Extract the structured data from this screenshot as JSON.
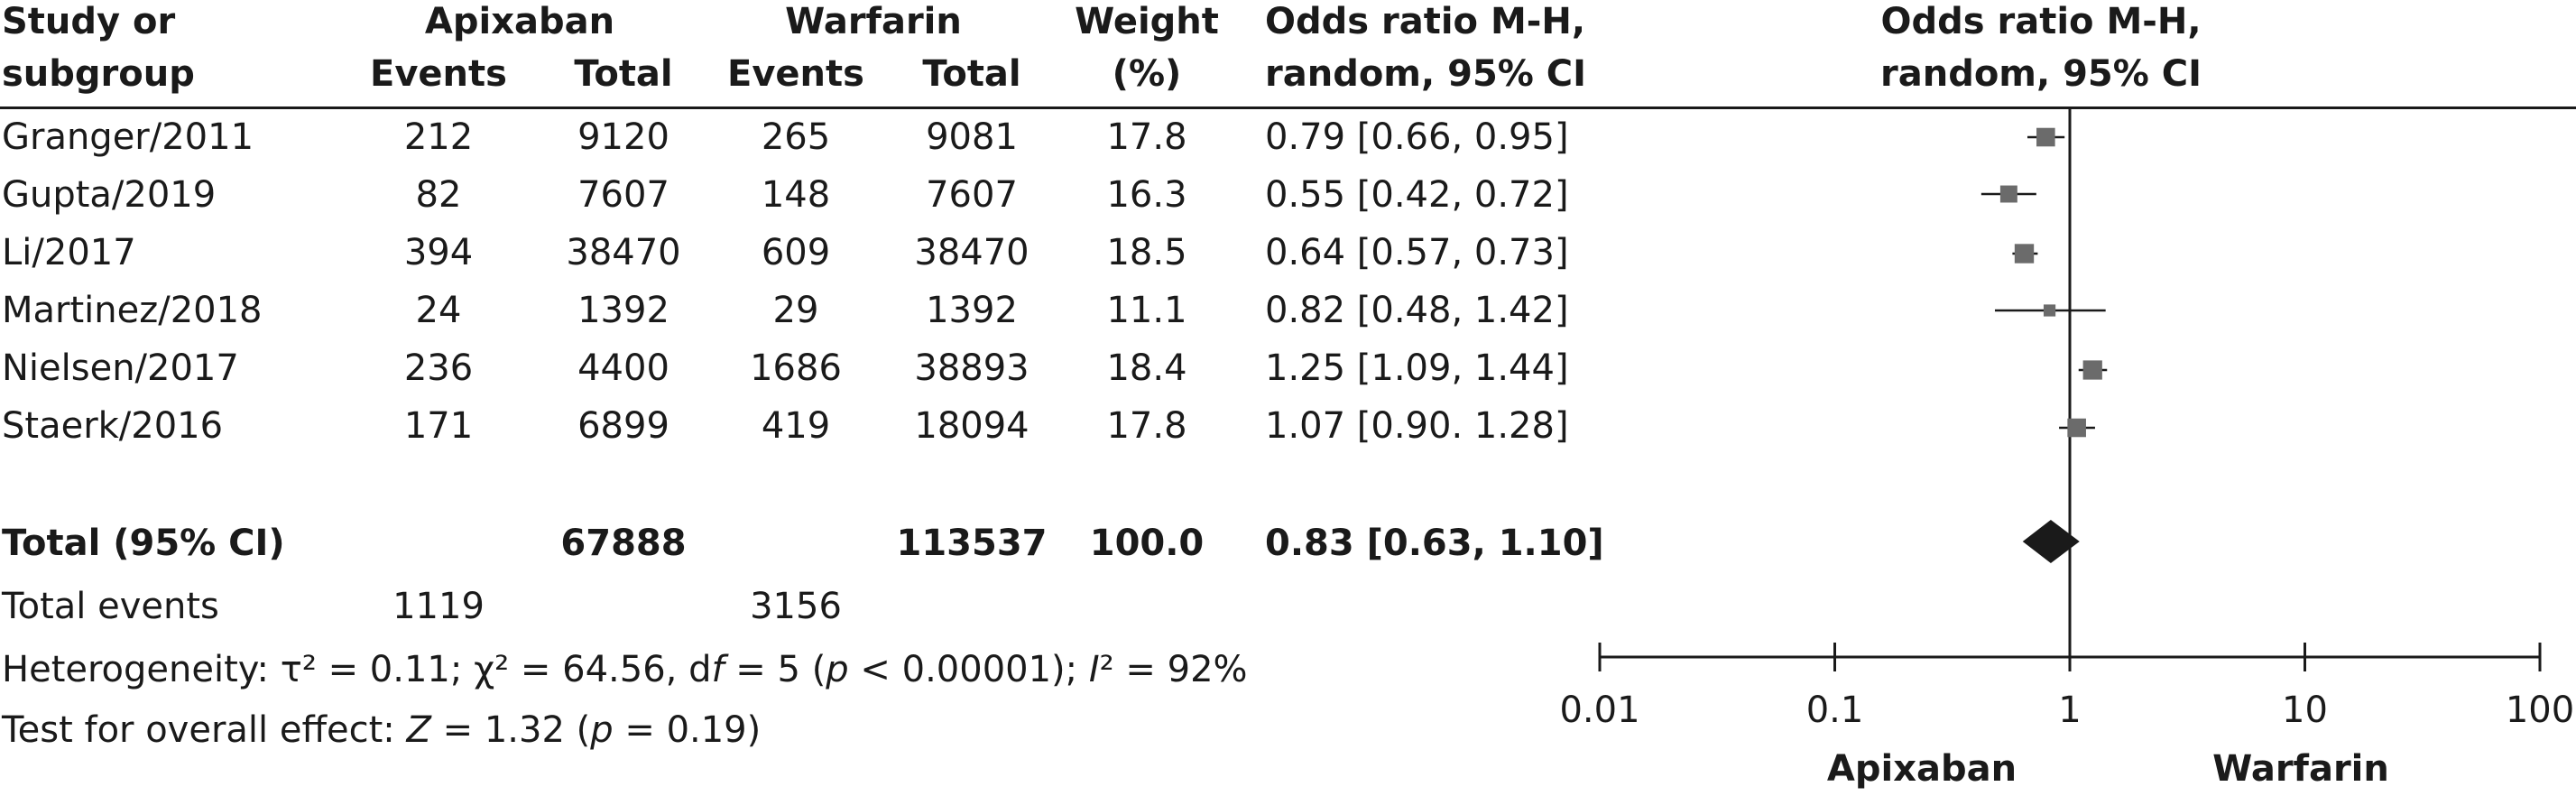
{
  "headers": {
    "study_1": "Study or",
    "study_2": "subgroup",
    "apix": "Apixaban",
    "warf": "Warfarin",
    "events": "Events",
    "total": "Total",
    "weight_1": "Weight",
    "weight_2": "(%)",
    "or_1": "Odds ratio M-H,",
    "or_2": "random, 95% CI",
    "plot_1": "Odds ratio M-H,",
    "plot_2": "random, 95% CI"
  },
  "studies": [
    {
      "name": "Granger/2011",
      "apix_events": "212",
      "apix_total": "9120",
      "warf_events": "265",
      "warf_total": "9081",
      "weight": "17.8",
      "ci_text": "0.79 [0.66, 0.95]"
    },
    {
      "name": "Gupta/2019",
      "apix_events": "82",
      "apix_total": "7607",
      "warf_events": "148",
      "warf_total": "7607",
      "weight": "16.3",
      "ci_text": "0.55 [0.42, 0.72]"
    },
    {
      "name": "Li/2017",
      "apix_events": "394",
      "apix_total": "38470",
      "warf_events": "609",
      "warf_total": "38470",
      "weight": "18.5",
      "ci_text": "0.64 [0.57, 0.73]"
    },
    {
      "name": "Martinez/2018",
      "apix_events": "24",
      "apix_total": "1392",
      "warf_events": "29",
      "warf_total": "1392",
      "weight": "11.1",
      "ci_text": "0.82 [0.48, 1.42]"
    },
    {
      "name": "Nielsen/2017",
      "apix_events": "236",
      "apix_total": "4400",
      "warf_events": "1686",
      "warf_total": "38893",
      "weight": "18.4",
      "ci_text": "1.25 [1.09, 1.44]"
    },
    {
      "name": "Staerk/2016",
      "apix_events": "171",
      "apix_total": "6899",
      "warf_events": "419",
      "warf_total": "18094",
      "weight": "17.8",
      "ci_text": "1.07 [0.90. 1.28]"
    }
  ],
  "total_row": {
    "label": "Total (95% CI)",
    "apix_total": "67888",
    "warf_total": "113537",
    "weight": "100.0",
    "ci_text": "0.83 [0.63, 1.10]"
  },
  "events_row": {
    "label": "Total events",
    "apix_events": "1119",
    "warf_events": "3156"
  },
  "heterogeneity": {
    "label": "Heterogeneity: ",
    "tau": "τ² = 0.11; ",
    "chi": "χ² = 64.56, d",
    "df_var": "f",
    "df_val": " = 5 (",
    "p_var": "p",
    "p_val": " < 0.00001); ",
    "i_var": "I",
    "i_val": "² = 92%"
  },
  "overall": {
    "label": "Test for overall effect: ",
    "z_var": "Z",
    "z_val": " = 1.32 (",
    "p_var": "p",
    "p_val": " = 0.19)"
  },
  "axis_side_labels": {
    "left": "Apixaban",
    "right": "Warfarin"
  },
  "colors": {
    "marker": "#6b6b6b",
    "line": "#1a1a1a"
  },
  "chart_data": {
    "type": "scatter",
    "subtype": "forest-plot",
    "xscale": "log",
    "xlim": [
      0.01,
      100
    ],
    "xticks": [
      0.01,
      0.1,
      1,
      10,
      100
    ],
    "xtick_labels": [
      "0.01",
      "0.1",
      "1",
      "10",
      "100"
    ],
    "reference_line": 1,
    "studies": [
      {
        "label": "Granger/2011",
        "or": 0.79,
        "lo": 0.66,
        "hi": 0.95,
        "weight": 17.8
      },
      {
        "label": "Gupta/2019",
        "or": 0.55,
        "lo": 0.42,
        "hi": 0.72,
        "weight": 16.3
      },
      {
        "label": "Li/2017",
        "or": 0.64,
        "lo": 0.57,
        "hi": 0.73,
        "weight": 18.5
      },
      {
        "label": "Martinez/2018",
        "or": 0.82,
        "lo": 0.48,
        "hi": 1.42,
        "weight": 11.1
      },
      {
        "label": "Nielsen/2017",
        "or": 1.25,
        "lo": 1.09,
        "hi": 1.44,
        "weight": 18.4
      },
      {
        "label": "Staerk/2016",
        "or": 1.07,
        "lo": 0.9,
        "hi": 1.28,
        "weight": 17.8
      }
    ],
    "pooled": {
      "or": 0.83,
      "lo": 0.63,
      "hi": 1.1
    },
    "xlabel_left": "Apixaban",
    "xlabel_right": "Warfarin"
  }
}
